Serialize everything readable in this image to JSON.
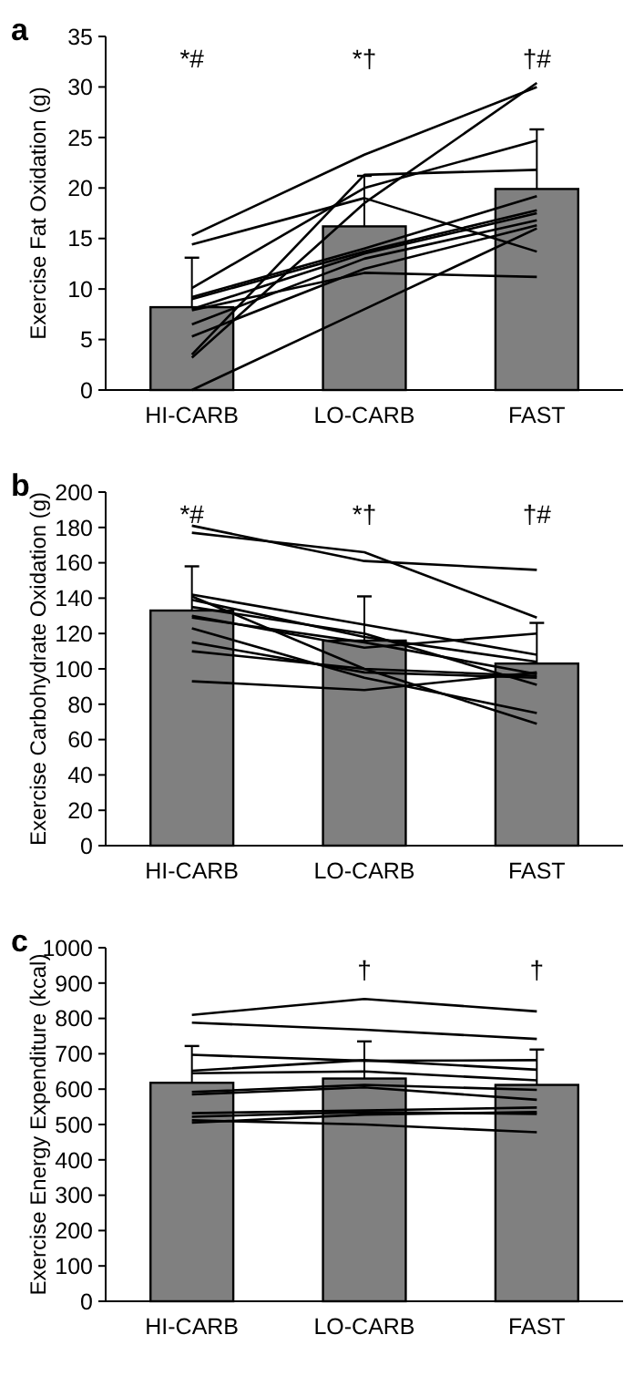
{
  "chart_data": [
    {
      "type": "bar",
      "title": "a",
      "ylabel": "Exercise Fat Oxidation (g)",
      "categories": [
        "HI-CARB",
        "LO-CARB",
        "FAST"
      ],
      "ylim": [
        0,
        35
      ],
      "yticks": [
        0,
        5,
        10,
        15,
        20,
        25,
        30,
        35
      ],
      "grid": false,
      "marker": "none",
      "annotations": [
        "*#",
        "*†",
        "†#"
      ],
      "series": [
        {
          "color": "#808080",
          "values": [
            8.2,
            16.2,
            19.9
          ],
          "errors": [
            [
              8.2,
              13.1
            ],
            [
              16.2,
              21.2
            ],
            [
              19.9,
              25.8
            ]
          ]
        },
        {
          "type": "line",
          "color": "#000000",
          "values": [
            15.3,
            23.3,
            30.0
          ]
        },
        {
          "type": "line",
          "color": "#000000",
          "values": [
            14.4,
            19.0,
            13.7
          ]
        },
        {
          "type": "line",
          "color": "#000000",
          "values": [
            3.2,
            18.5,
            30.4
          ]
        },
        {
          "type": "line",
          "color": "#000000",
          "values": [
            3.5,
            21.3,
            21.8
          ]
        },
        {
          "type": "line",
          "color": "#000000",
          "values": [
            10.1,
            20.0,
            24.7
          ]
        },
        {
          "type": "line",
          "color": "#000000",
          "values": [
            9.2,
            14.0,
            19.2
          ]
        },
        {
          "type": "line",
          "color": "#000000",
          "values": [
            9.0,
            13.7,
            17.8
          ]
        },
        {
          "type": "line",
          "color": "#000000",
          "values": [
            8.0,
            13.5,
            17.5
          ]
        },
        {
          "type": "line",
          "color": "#000000",
          "values": [
            7.9,
            11.6,
            11.2
          ]
        },
        {
          "type": "line",
          "color": "#000000",
          "values": [
            6.5,
            13.0,
            16.8
          ]
        },
        {
          "type": "line",
          "color": "#000000",
          "values": [
            5.3,
            12.0,
            16.3
          ]
        },
        {
          "type": "line",
          "color": "#000000",
          "values": [
            0,
            8.0,
            16.0
          ]
        }
      ]
    },
    {
      "type": "bar",
      "title": "b",
      "ylabel": "Exercise Carbohydrate Oxidation (g)",
      "categories": [
        "HI-CARB",
        "LO-CARB",
        "FAST"
      ],
      "ylim": [
        0,
        200
      ],
      "yticks": [
        0,
        20,
        40,
        60,
        80,
        100,
        120,
        140,
        160,
        180,
        200
      ],
      "grid": false,
      "marker": "none",
      "annotations": [
        "*#",
        "*†",
        "†#"
      ],
      "series": [
        {
          "color": "#808080",
          "values": [
            133,
            116,
            103
          ],
          "errors": [
            [
              133,
              158
            ],
            [
              116,
              141
            ],
            [
              103,
              126
            ]
          ]
        },
        {
          "type": "line",
          "color": "#000000",
          "values": [
            181,
            161,
            156
          ]
        },
        {
          "type": "line",
          "color": "#000000",
          "values": [
            177,
            166,
            129
          ]
        },
        {
          "type": "line",
          "color": "#000000",
          "values": [
            142,
            125,
            108
          ]
        },
        {
          "type": "line",
          "color": "#000000",
          "values": [
            141,
            100,
            69
          ]
        },
        {
          "type": "line",
          "color": "#000000",
          "values": [
            139,
            118,
            104
          ]
        },
        {
          "type": "line",
          "color": "#000000",
          "values": [
            130,
            112,
            120
          ]
        },
        {
          "type": "line",
          "color": "#000000",
          "values": [
            129,
            115,
            97
          ]
        },
        {
          "type": "line",
          "color": "#000000",
          "values": [
            123,
            95,
            75
          ]
        },
        {
          "type": "line",
          "color": "#000000",
          "values": [
            115,
            98,
            95
          ]
        },
        {
          "type": "line",
          "color": "#000000",
          "values": [
            110,
            100,
            96
          ]
        },
        {
          "type": "line",
          "color": "#000000",
          "values": [
            93,
            88,
            98
          ]
        },
        {
          "type": "line",
          "color": "#000000",
          "values": [
            135,
            120,
            91
          ]
        }
      ]
    },
    {
      "type": "bar",
      "title": "c",
      "ylabel": "Exercise Energy Expenditure (kcal)",
      "categories": [
        "HI-CARB",
        "LO-CARB",
        "FAST"
      ],
      "ylim": [
        0,
        1000
      ],
      "yticks": [
        0,
        100,
        200,
        300,
        400,
        500,
        600,
        700,
        800,
        900,
        1000
      ],
      "grid": false,
      "marker": "none",
      "annotations": [
        "†",
        "†"
      ],
      "series": [
        {
          "color": "#808080",
          "values": [
            618,
            630,
            612
          ],
          "errors": [
            [
              618,
              722
            ],
            [
              630,
              735
            ],
            [
              612,
              712
            ]
          ]
        },
        {
          "type": "line",
          "color": "#000000",
          "values": [
            810,
            855,
            820
          ]
        },
        {
          "type": "line",
          "color": "#000000",
          "values": [
            788,
            768,
            742
          ]
        },
        {
          "type": "line",
          "color": "#000000",
          "values": [
            697,
            680,
            682
          ]
        },
        {
          "type": "line",
          "color": "#000000",
          "values": [
            652,
            682,
            655
          ]
        },
        {
          "type": "line",
          "color": "#000000",
          "values": [
            645,
            650,
            625
          ]
        },
        {
          "type": "line",
          "color": "#000000",
          "values": [
            592,
            612,
            598
          ]
        },
        {
          "type": "line",
          "color": "#000000",
          "values": [
            585,
            605,
            570
          ]
        },
        {
          "type": "line",
          "color": "#000000",
          "values": [
            532,
            540,
            548
          ]
        },
        {
          "type": "line",
          "color": "#000000",
          "values": [
            522,
            535,
            530
          ]
        },
        {
          "type": "line",
          "color": "#000000",
          "values": [
            512,
            500,
            478
          ]
        },
        {
          "type": "line",
          "color": "#000000",
          "values": [
            505,
            528,
            535
          ]
        }
      ]
    }
  ]
}
